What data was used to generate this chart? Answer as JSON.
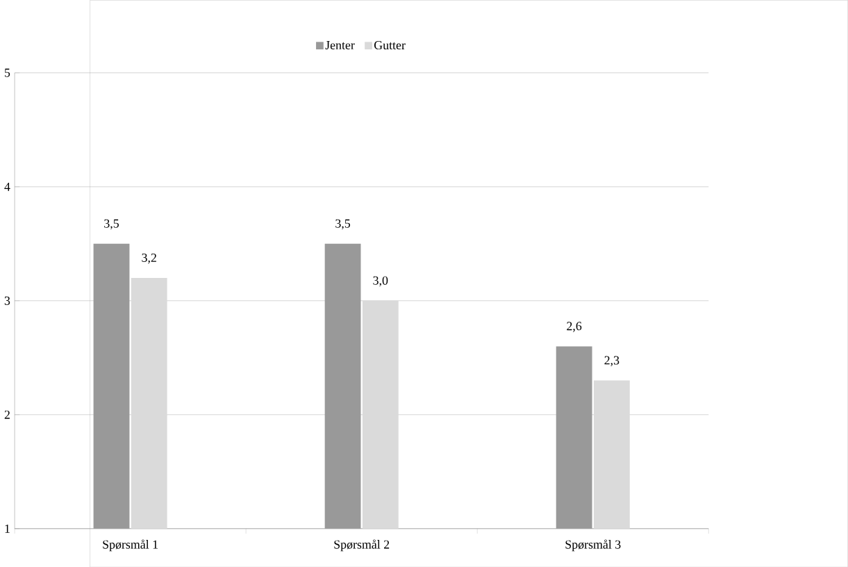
{
  "chart_data": {
    "type": "bar",
    "categories": [
      "Spørsmål 1",
      "Spørsmål 2",
      "Spørsmål 3"
    ],
    "series": [
      {
        "name": "Jenter",
        "color": "#999999",
        "values": [
          3.5,
          3.5,
          2.6
        ],
        "value_labels": [
          "3,5",
          "3,5",
          "2,6"
        ]
      },
      {
        "name": "Gutter",
        "color": "#dadada",
        "values": [
          3.2,
          3.0,
          2.3
        ],
        "value_labels": [
          "3,2",
          "3,0",
          "2,3"
        ]
      }
    ],
    "ylim": [
      1,
      5
    ],
    "yticks": [
      1,
      2,
      3,
      4,
      5
    ],
    "grid": "y",
    "legend": "top"
  }
}
